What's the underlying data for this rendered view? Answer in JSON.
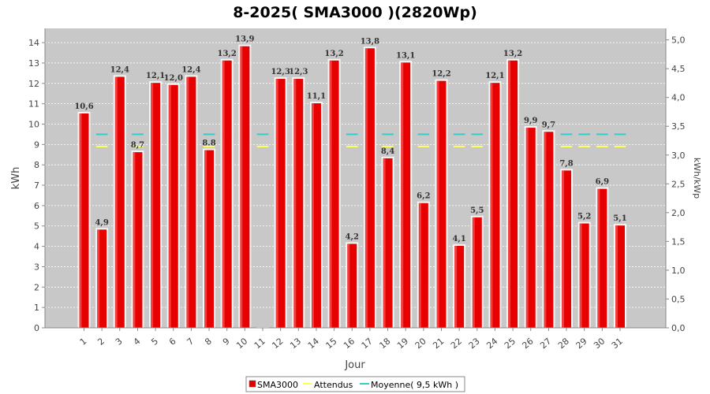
{
  "chart_data": {
    "type": "bar",
    "title": "8-2025( SMA3000 )(2820Wp)",
    "xlabel": "Jour",
    "ylabel": "kWh",
    "y2label": "kWh/kWp",
    "ylim": [
      0,
      14.7
    ],
    "y2lim": [
      0,
      5.2
    ],
    "yticks": [
      0,
      1,
      2,
      3,
      4,
      5,
      6,
      7,
      8,
      9,
      10,
      11,
      12,
      13,
      14
    ],
    "y2ticks": [
      "0,0",
      "0,5",
      "1,0",
      "1,5",
      "2,0",
      "2,5",
      "3,0",
      "3,5",
      "4,0",
      "4,5",
      "5,0"
    ],
    "categories": [
      "1",
      "2",
      "3",
      "4",
      "5",
      "6",
      "7",
      "8",
      "9",
      "10",
      "11",
      "12",
      "13",
      "14",
      "15",
      "16",
      "17",
      "18",
      "19",
      "20",
      "21",
      "22",
      "23",
      "24",
      "25",
      "26",
      "27",
      "28",
      "29",
      "30",
      "31"
    ],
    "series": [
      {
        "name": "SMA3000",
        "color": "#e60000",
        "values": [
          10.6,
          4.9,
          12.4,
          8.7,
          12.1,
          12.0,
          12.4,
          8.8,
          13.2,
          13.9,
          0,
          12.3,
          12.3,
          11.1,
          13.2,
          4.2,
          13.8,
          8.4,
          13.1,
          6.2,
          12.2,
          4.1,
          5.5,
          12.1,
          13.2,
          9.9,
          9.7,
          7.8,
          5.2,
          6.9,
          5.1
        ],
        "labels": [
          "10,6",
          "4,9",
          "12,4",
          "8,7",
          "12,1",
          "12,0",
          "12,4",
          "8.8",
          "13,2",
          "13,9",
          "",
          "12,3",
          "12,3",
          "11,1",
          "13,2",
          "4,2",
          "13,8",
          "8,4",
          "13,1",
          "6,2",
          "12,2",
          "4,1",
          "5,5",
          "12,1",
          "13,2",
          "9,9",
          "9,7",
          "7,8",
          "5,2",
          "6,9",
          "5,1"
        ]
      },
      {
        "name": "Attendus",
        "color": "#ffff55",
        "type": "line",
        "values": [
          8.9,
          8.9,
          8.9,
          8.9,
          8.9,
          8.9,
          8.9,
          8.9,
          8.9,
          8.9,
          8.9,
          8.9,
          8.9,
          8.9,
          8.9,
          8.9,
          8.9,
          8.9,
          8.9,
          8.9,
          8.9,
          8.9,
          8.9,
          8.9,
          8.9,
          8.9,
          8.9,
          8.9,
          8.9,
          8.9,
          8.9
        ]
      },
      {
        "name": "Moyenne( 9,5 kWh )",
        "color": "#33cccc",
        "type": "line",
        "value": 9.5
      }
    ],
    "grid": true,
    "legend_position": "bottom"
  }
}
